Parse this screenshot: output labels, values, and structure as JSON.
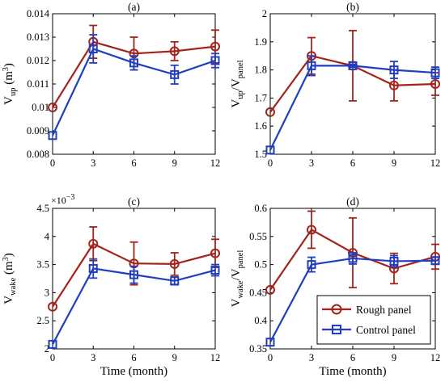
{
  "colors": {
    "rough": "#a4231c",
    "control": "#1f3fbf",
    "axis": "#000000"
  },
  "legend": {
    "placement": "lower-right of panel (d)",
    "entries": [
      {
        "label": "Rough panel",
        "color": "#a4231c",
        "marker": "circle"
      },
      {
        "label": "Control panel",
        "color": "#1f3fbf",
        "marker": "square"
      }
    ]
  },
  "shared_x": {
    "label": "Time (month)",
    "ticks": [
      "0",
      "3",
      "6",
      "9",
      "12"
    ]
  },
  "chart_data": [
    {
      "type": "line",
      "title": "(a)",
      "ylabel": {
        "main": "V",
        "sub": "up",
        "rest": " (m",
        "sup": "3",
        "end": ")"
      },
      "x": [
        0,
        3,
        6,
        9,
        12
      ],
      "xlim": [
        0,
        12
      ],
      "ylim": [
        0.008,
        0.014
      ],
      "yticks": [
        0.008,
        0.009,
        0.01,
        0.011,
        0.012,
        0.013,
        0.014
      ],
      "ytick_labels": [
        "0.008",
        "0.009",
        "0.01",
        "0.011",
        "0.012",
        "0.013",
        "0.014"
      ],
      "show_xlabel": false,
      "series": [
        {
          "name": "Rough panel",
          "values": [
            0.01,
            0.0128,
            0.0123,
            0.0124,
            0.0126
          ],
          "err": [
            0,
            0.0007,
            0.0007,
            0.0004,
            0.0007
          ]
        },
        {
          "name": "Control panel",
          "values": [
            0.0088,
            0.0125,
            0.0119,
            0.0114,
            0.012
          ],
          "err": [
            0,
            0.0006,
            0.0003,
            0.0004,
            0.0003
          ]
        }
      ]
    },
    {
      "type": "line",
      "title": "(b)",
      "ylabel": {
        "main": "V",
        "sub": "up",
        "rest": "/V",
        "sub2": "panel"
      },
      "x": [
        0,
        3,
        6,
        9,
        12
      ],
      "xlim": [
        0,
        12
      ],
      "ylim": [
        1.5,
        2.0
      ],
      "yticks": [
        1.5,
        1.6,
        1.7,
        1.8,
        1.9,
        2.0
      ],
      "ytick_labels": [
        "1.5",
        "1.6",
        "1.7",
        "1.8",
        "1.9",
        "2"
      ],
      "show_xlabel": false,
      "series": [
        {
          "name": "Rough panel",
          "values": [
            1.65,
            1.85,
            1.815,
            1.745,
            1.75
          ],
          "err": [
            0,
            0.065,
            0.125,
            0.055,
            0.04
          ]
        },
        {
          "name": "Control panel",
          "values": [
            1.515,
            1.815,
            1.815,
            1.8,
            1.79
          ],
          "err": [
            0,
            0.035,
            0.005,
            0.03,
            0.02
          ]
        }
      ]
    },
    {
      "type": "line",
      "title": "(c)",
      "exponent": {
        "base": "×10",
        "sup": "−3"
      },
      "ylabel": {
        "main": "V",
        "sub": "wake",
        "rest": " (m",
        "sup": "3",
        "end": ")"
      },
      "x": [
        0,
        3,
        6,
        9,
        12
      ],
      "xlim": [
        0,
        12
      ],
      "ylim": [
        2.0,
        4.5
      ],
      "yticks": [
        2.0,
        2.5,
        3.0,
        3.5,
        4.0,
        4.5
      ],
      "ytick_labels": [
        "2",
        "2.5",
        "3",
        "3.5",
        "4",
        "4.5"
      ],
      "show_xlabel": true,
      "series": [
        {
          "name": "Rough panel",
          "values": [
            2.75,
            3.87,
            3.52,
            3.51,
            3.7
          ],
          "err": [
            0,
            0.3,
            0.38,
            0.2,
            0.25
          ]
        },
        {
          "name": "Control panel",
          "values": [
            2.08,
            3.43,
            3.32,
            3.21,
            3.4
          ],
          "err": [
            0,
            0.17,
            0.15,
            0.07,
            0.1
          ]
        }
      ]
    },
    {
      "type": "line",
      "title": "(d)",
      "ylabel": {
        "main": "V",
        "sub": "wake",
        "rest": "/V",
        "sub2": "panel"
      },
      "x": [
        0,
        3,
        6,
        9,
        12
      ],
      "xlim": [
        0,
        12
      ],
      "ylim": [
        0.35,
        0.6
      ],
      "yticks": [
        0.35,
        0.4,
        0.45,
        0.5,
        0.55,
        0.6
      ],
      "ytick_labels": [
        "0.35",
        "0.4",
        "0.45",
        "0.5",
        "0.55",
        "0.6"
      ],
      "show_xlabel": true,
      "series": [
        {
          "name": "Rough panel",
          "values": [
            0.455,
            0.562,
            0.521,
            0.493,
            0.514
          ],
          "err": [
            0,
            0.033,
            0.062,
            0.027,
            0.022
          ]
        },
        {
          "name": "Control panel",
          "values": [
            0.362,
            0.5,
            0.511,
            0.506,
            0.507
          ],
          "err": [
            0,
            0.013,
            0.01,
            0.01,
            0.006
          ]
        }
      ]
    }
  ]
}
